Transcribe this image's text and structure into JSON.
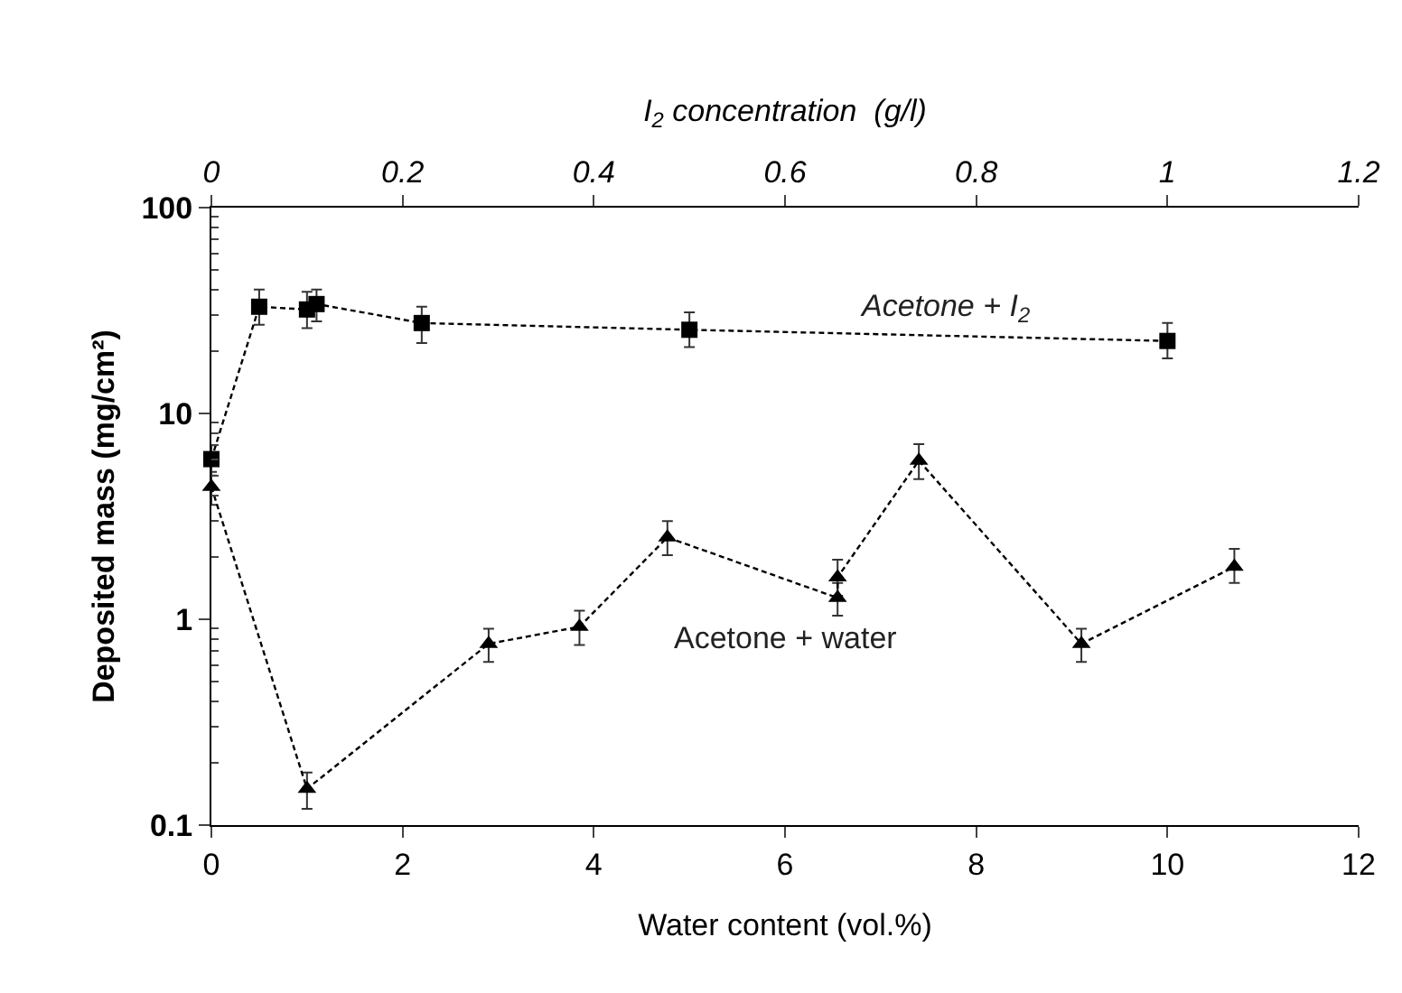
{
  "chart_data": {
    "type": "line",
    "xlabel": "Water content (vol.%)",
    "x2label": "I$_{2}$ concentration  (g/l)",
    "ylabel": "Deposited mass (mg/cm²)",
    "log": "y",
    "legend": false,
    "line_style": "dashed",
    "xlim": [
      0,
      12
    ],
    "xticks": [
      0,
      2,
      4,
      6,
      8,
      10,
      12
    ],
    "x2lim": [
      0,
      1.2
    ],
    "x2ticks": [
      0,
      0.2,
      0.4,
      0.6,
      0.8,
      1,
      1.2
    ],
    "ylim": [
      0.1,
      100
    ],
    "yticks": [
      0.1,
      1,
      10,
      100
    ],
    "series": [
      {
        "name": "Acetone + I$_{2}$",
        "color": "#000000",
        "marker": "square",
        "axis": "x2",
        "x": [
          0,
          0.05,
          0.1,
          0.11,
          0.22,
          0.5,
          1.0
        ],
        "values": [
          6.0,
          33,
          32,
          34,
          27.5,
          25.5,
          22.5
        ],
        "errors": [
          [
            5.0,
            7.0
          ],
          [
            27,
            40
          ],
          [
            26,
            39
          ],
          [
            28,
            40
          ],
          [
            22,
            33
          ],
          [
            21,
            31
          ],
          [
            18.5,
            27.5
          ]
        ]
      },
      {
        "name": "Acetone + water",
        "color": "#000000",
        "marker": "triangle",
        "x": [
          0,
          1.0,
          2.9,
          3.85,
          4.77,
          6.55,
          6.55,
          7.4,
          9.1,
          10.7
        ],
        "values": [
          4.4,
          0.15,
          0.76,
          0.92,
          2.5,
          1.27,
          1.6,
          5.9,
          0.76,
          1.8
        ],
        "errors": [
          [
            3.6,
            5.2
          ],
          [
            0.12,
            0.18
          ],
          [
            0.62,
            0.9
          ],
          [
            0.75,
            1.1
          ],
          [
            2.05,
            3.0
          ],
          [
            1.04,
            1.5
          ],
          [
            1.3,
            1.95
          ],
          [
            4.8,
            7.1
          ],
          [
            0.62,
            0.9
          ],
          [
            1.5,
            2.2
          ]
        ]
      }
    ]
  }
}
